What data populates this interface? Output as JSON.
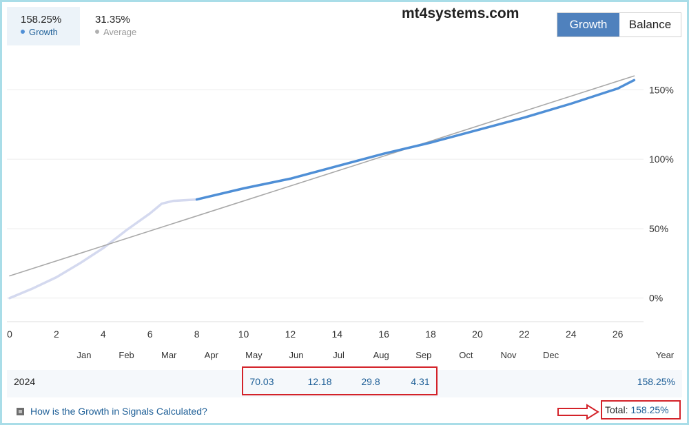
{
  "stats": {
    "growth_value": "158.25%",
    "growth_label": "Growth",
    "average_value": "31.35%",
    "average_label": "Average"
  },
  "watermark": "mt4systems.com",
  "toggle": {
    "growth_label": "Growth",
    "balance_label": "Balance",
    "selected": "Growth"
  },
  "colors": {
    "growth_line": "#4f8fd6",
    "early_growth_line": "#d4d9ef",
    "trend_line": "#a9a9a9",
    "accent": "#4f81bd",
    "highlight": "#d32229"
  },
  "chart_data": {
    "type": "line",
    "x_ticks": [
      "0",
      "2",
      "4",
      "6",
      "8",
      "10",
      "12",
      "14",
      "16",
      "18",
      "20",
      "22",
      "24",
      "26"
    ],
    "month_ticks": [
      "Jan",
      "Feb",
      "Mar",
      "Apr",
      "May",
      "Jun",
      "Jul",
      "Aug",
      "Sep",
      "Oct",
      "Nov",
      "Dec",
      "Year"
    ],
    "y_ticks": [
      "0%",
      "50%",
      "100%",
      "150%"
    ],
    "xlim": [
      0,
      27.1
    ],
    "ylim": [
      -17,
      175
    ],
    "series": [
      {
        "name": "Growth",
        "segment": "early",
        "x": [
          0,
          1,
          2,
          3,
          4,
          5,
          6,
          6.5,
          7,
          8
        ],
        "y": [
          0,
          7,
          15,
          25,
          36,
          49,
          61,
          68,
          70,
          71
        ]
      },
      {
        "name": "Growth",
        "segment": "main",
        "x": [
          8,
          10,
          12,
          14,
          16,
          18,
          20,
          22,
          24,
          26,
          26.7
        ],
        "y": [
          71,
          79,
          86,
          95,
          104,
          112,
          121,
          130,
          140,
          151,
          157
        ]
      },
      {
        "name": "Average",
        "segment": "trend",
        "x": [
          0,
          26.7
        ],
        "y": [
          16,
          160
        ]
      }
    ]
  },
  "table": {
    "year": "2024",
    "months": [
      {
        "month": "May",
        "value": "70.03"
      },
      {
        "month": "Jun",
        "value": "12.18"
      },
      {
        "month": "Jul",
        "value": "29.8"
      },
      {
        "month": "Aug",
        "value": "4.31"
      }
    ],
    "year_total": "158.25%"
  },
  "help_link": "How is the Growth in Signals Calculated?",
  "total": {
    "label": "Total:",
    "value": "158.25%"
  }
}
